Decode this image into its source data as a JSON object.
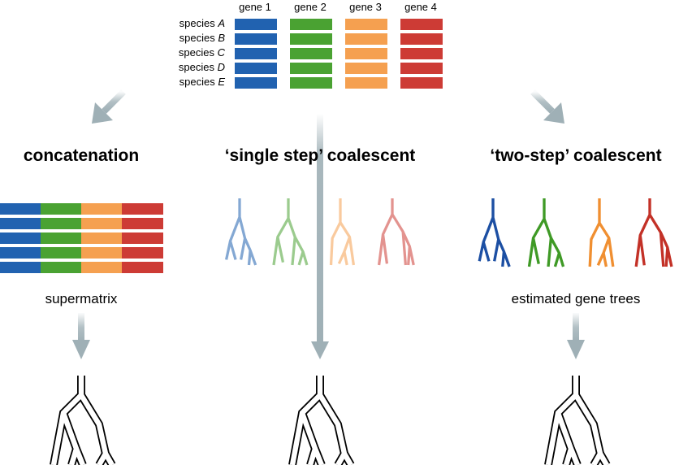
{
  "colors": {
    "gene1": "#2162b0",
    "gene2": "#4aa232",
    "gene3": "#f5a050",
    "gene4": "#cd3b35",
    "arrow": "#9fb0b6",
    "tree_dark_blue": "#1c4fa3",
    "tree_dark_green": "#3f9a26",
    "tree_dark_orange": "#f08f31",
    "tree_dark_red": "#c33127"
  },
  "genes": [
    "gene 1",
    "gene 2",
    "gene 3",
    "gene 4"
  ],
  "species": [
    {
      "prefix": "species ",
      "name": "A"
    },
    {
      "prefix": "species ",
      "name": "B"
    },
    {
      "prefix": "species ",
      "name": "C"
    },
    {
      "prefix": "species ",
      "name": "D"
    },
    {
      "prefix": "species ",
      "name": "E"
    }
  ],
  "methods": [
    {
      "title": "concatenation",
      "caption": "supermatrix"
    },
    {
      "title": "‘single step’ coalescent",
      "caption": ""
    },
    {
      "title": "‘two-step’ coalescent",
      "caption": "estimated gene trees"
    }
  ]
}
